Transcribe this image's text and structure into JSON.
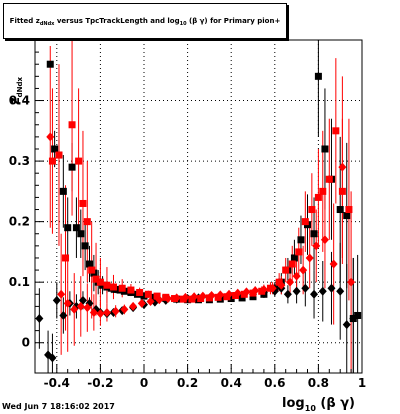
{
  "header": {
    "title_prefix": "Fitted  z",
    "title_sub": "dNdx",
    "title_mid": "  versus  TpcTrackLength and log",
    "title_sub2": "10",
    "title_suffix": " (β γ) for Primary pion+"
  },
  "footer": {
    "timestamp": "Wed Jun  7 18:16:02 2017"
  },
  "axes": {
    "xlabel_main": "log",
    "xlabel_sub": "10",
    "xlabel_tail": " (β γ)",
    "ylabel_main": "z",
    "ylabel_sub": "dNdx"
  },
  "chart_data": {
    "type": "scatter",
    "title": "Fitted z_dNdx versus TpcTrackLength and log10(βγ) for Primary pion+",
    "xlabel": "log10 (β γ)",
    "ylabel": "z_dNdx",
    "xlim": [
      -0.5,
      1.0
    ],
    "ylim": [
      -0.05,
      0.5
    ],
    "x_ticks": [
      -0.4,
      -0.2,
      0,
      0.2,
      0.4,
      0.6,
      0.8,
      1
    ],
    "x_tick_labels": [
      "-0.4",
      "-0.2",
      "0",
      "0.2",
      "0.4",
      "0.6",
      "0.8",
      "1"
    ],
    "y_ticks": [
      0,
      0.1,
      0.2,
      0.3,
      0.4
    ],
    "y_tick_labels": [
      "0",
      "0.1",
      "0.2",
      "0.3",
      "0.4"
    ],
    "grid": true,
    "series": [
      {
        "color": "#000000",
        "marker": "square",
        "points": [
          [
            -0.43,
            0.46,
            0.0
          ],
          [
            -0.41,
            0.32,
            0.03
          ],
          [
            -0.39,
            0.31,
            0.05
          ],
          [
            -0.37,
            0.25,
            0.06
          ],
          [
            -0.35,
            0.19,
            0.05
          ],
          [
            -0.33,
            0.29,
            0.04
          ],
          [
            -0.31,
            0.19,
            0.05
          ],
          [
            -0.29,
            0.18,
            0.04
          ],
          [
            -0.27,
            0.16,
            0.04
          ],
          [
            -0.25,
            0.13,
            0.03
          ],
          [
            -0.23,
            0.115,
            0.03
          ],
          [
            -0.21,
            0.1,
            0.02
          ],
          [
            -0.19,
            0.095,
            0.015
          ],
          [
            -0.17,
            0.092,
            0.01
          ],
          [
            -0.15,
            0.09,
            0.008
          ],
          [
            -0.13,
            0.088,
            0.006
          ],
          [
            -0.11,
            0.087,
            0.005
          ],
          [
            -0.09,
            0.085,
            0.004
          ],
          [
            -0.06,
            0.083,
            0.004
          ],
          [
            -0.03,
            0.08,
            0.003
          ],
          [
            0.0,
            0.077,
            0.003
          ],
          [
            0.05,
            0.075,
            0.003
          ],
          [
            0.1,
            0.073,
            0.003
          ],
          [
            0.15,
            0.072,
            0.003
          ],
          [
            0.2,
            0.071,
            0.003
          ],
          [
            0.25,
            0.071,
            0.003
          ],
          [
            0.3,
            0.071,
            0.003
          ],
          [
            0.35,
            0.072,
            0.003
          ],
          [
            0.4,
            0.073,
            0.003
          ],
          [
            0.45,
            0.074,
            0.004
          ],
          [
            0.5,
            0.076,
            0.005
          ],
          [
            0.55,
            0.08,
            0.006
          ],
          [
            0.6,
            0.09,
            0.01
          ],
          [
            0.63,
            0.1,
            0.015
          ],
          [
            0.66,
            0.12,
            0.02
          ],
          [
            0.69,
            0.14,
            0.03
          ],
          [
            0.72,
            0.17,
            0.04
          ],
          [
            0.75,
            0.195,
            0.05
          ],
          [
            0.78,
            0.18,
            0.06
          ],
          [
            0.8,
            0.44,
            0.1
          ],
          [
            0.83,
            0.32,
            0.1
          ],
          [
            0.86,
            0.27,
            0.1
          ],
          [
            0.9,
            0.22,
            0.12
          ],
          [
            0.93,
            0.21,
            0.12
          ],
          [
            0.96,
            0.04,
            0.1
          ],
          [
            0.98,
            0.045,
            0.1
          ]
        ]
      },
      {
        "color": "#000000",
        "marker": "diamond",
        "points": [
          [
            -0.48,
            0.04,
            0.05
          ],
          [
            -0.44,
            -0.02,
            0.04
          ],
          [
            -0.42,
            -0.025,
            0.04
          ],
          [
            -0.4,
            0.07,
            0.03
          ],
          [
            -0.37,
            0.045,
            0.03
          ],
          [
            -0.34,
            0.065,
            0.02
          ],
          [
            -0.31,
            0.06,
            0.02
          ],
          [
            -0.28,
            0.07,
            0.015
          ],
          [
            -0.25,
            0.065,
            0.01
          ],
          [
            -0.22,
            0.055,
            0.008
          ],
          [
            -0.2,
            0.05,
            0.006
          ],
          [
            -0.17,
            0.048,
            0.005
          ],
          [
            -0.14,
            0.05,
            0.004
          ],
          [
            -0.1,
            0.053,
            0.004
          ],
          [
            -0.05,
            0.058,
            0.003
          ],
          [
            0.0,
            0.063,
            0.003
          ],
          [
            0.05,
            0.067,
            0.003
          ],
          [
            0.1,
            0.07,
            0.003
          ],
          [
            0.15,
            0.072,
            0.003
          ],
          [
            0.2,
            0.073,
            0.003
          ],
          [
            0.25,
            0.074,
            0.003
          ],
          [
            0.3,
            0.074,
            0.003
          ],
          [
            0.35,
            0.075,
            0.003
          ],
          [
            0.4,
            0.076,
            0.003
          ],
          [
            0.45,
            0.078,
            0.004
          ],
          [
            0.5,
            0.08,
            0.005
          ],
          [
            0.55,
            0.083,
            0.006
          ],
          [
            0.6,
            0.085,
            0.008
          ],
          [
            0.63,
            0.09,
            0.01
          ],
          [
            0.66,
            0.08,
            0.015
          ],
          [
            0.7,
            0.085,
            0.02
          ],
          [
            0.74,
            0.09,
            0.03
          ],
          [
            0.78,
            0.08,
            0.04
          ],
          [
            0.82,
            0.085,
            0.05
          ],
          [
            0.86,
            0.09,
            0.06
          ],
          [
            0.9,
            0.085,
            0.08
          ],
          [
            0.93,
            0.03,
            0.1
          ],
          [
            0.96,
            0.04,
            0.1
          ]
        ]
      },
      {
        "color": "#ff0000",
        "marker": "square",
        "points": [
          [
            -0.42,
            0.3,
            0.12
          ],
          [
            -0.39,
            0.31,
            0.15
          ],
          [
            -0.36,
            0.14,
            0.12
          ],
          [
            -0.33,
            0.36,
            0.15
          ],
          [
            -0.3,
            0.3,
            0.12
          ],
          [
            -0.28,
            0.23,
            0.12
          ],
          [
            -0.26,
            0.2,
            0.1
          ],
          [
            -0.24,
            0.12,
            0.08
          ],
          [
            -0.22,
            0.105,
            0.06
          ],
          [
            -0.2,
            0.1,
            0.04
          ],
          [
            -0.17,
            0.095,
            0.03
          ],
          [
            -0.14,
            0.092,
            0.02
          ],
          [
            -0.1,
            0.09,
            0.015
          ],
          [
            -0.06,
            0.087,
            0.01
          ],
          [
            -0.02,
            0.083,
            0.008
          ],
          [
            0.02,
            0.08,
            0.006
          ],
          [
            0.06,
            0.077,
            0.005
          ],
          [
            0.1,
            0.075,
            0.004
          ],
          [
            0.14,
            0.073,
            0.004
          ],
          [
            0.18,
            0.072,
            0.004
          ],
          [
            0.22,
            0.072,
            0.004
          ],
          [
            0.26,
            0.073,
            0.004
          ],
          [
            0.3,
            0.074,
            0.004
          ],
          [
            0.34,
            0.075,
            0.004
          ],
          [
            0.38,
            0.076,
            0.005
          ],
          [
            0.42,
            0.078,
            0.005
          ],
          [
            0.46,
            0.08,
            0.006
          ],
          [
            0.5,
            0.082,
            0.007
          ],
          [
            0.54,
            0.085,
            0.008
          ],
          [
            0.58,
            0.09,
            0.01
          ],
          [
            0.62,
            0.1,
            0.015
          ],
          [
            0.65,
            0.12,
            0.02
          ],
          [
            0.68,
            0.13,
            0.03
          ],
          [
            0.71,
            0.15,
            0.04
          ],
          [
            0.74,
            0.2,
            0.05
          ],
          [
            0.77,
            0.22,
            0.06
          ],
          [
            0.8,
            0.24,
            0.08
          ],
          [
            0.82,
            0.25,
            0.1
          ],
          [
            0.85,
            0.27,
            0.1
          ],
          [
            0.88,
            0.35,
            0.12
          ],
          [
            0.91,
            0.25,
            0.12
          ],
          [
            0.94,
            0.22,
            0.15
          ]
        ]
      },
      {
        "color": "#ff0000",
        "marker": "diamond",
        "points": [
          [
            -0.43,
            0.34,
            0.15
          ],
          [
            -0.38,
            0.08,
            0.1
          ],
          [
            -0.35,
            0.065,
            0.08
          ],
          [
            -0.32,
            0.055,
            0.06
          ],
          [
            -0.29,
            0.06,
            0.05
          ],
          [
            -0.26,
            0.058,
            0.04
          ],
          [
            -0.23,
            0.05,
            0.03
          ],
          [
            -0.2,
            0.048,
            0.02
          ],
          [
            -0.17,
            0.05,
            0.015
          ],
          [
            -0.13,
            0.052,
            0.01
          ],
          [
            -0.09,
            0.055,
            0.008
          ],
          [
            -0.05,
            0.06,
            0.006
          ],
          [
            -0.01,
            0.065,
            0.005
          ],
          [
            0.03,
            0.068,
            0.004
          ],
          [
            0.07,
            0.071,
            0.004
          ],
          [
            0.11,
            0.073,
            0.004
          ],
          [
            0.15,
            0.074,
            0.004
          ],
          [
            0.19,
            0.075,
            0.004
          ],
          [
            0.23,
            0.076,
            0.004
          ],
          [
            0.27,
            0.077,
            0.004
          ],
          [
            0.31,
            0.078,
            0.004
          ],
          [
            0.35,
            0.079,
            0.004
          ],
          [
            0.39,
            0.08,
            0.005
          ],
          [
            0.43,
            0.082,
            0.005
          ],
          [
            0.47,
            0.084,
            0.006
          ],
          [
            0.51,
            0.086,
            0.007
          ],
          [
            0.55,
            0.088,
            0.008
          ],
          [
            0.59,
            0.09,
            0.01
          ],
          [
            0.63,
            0.095,
            0.015
          ],
          [
            0.67,
            0.1,
            0.02
          ],
          [
            0.7,
            0.11,
            0.03
          ],
          [
            0.73,
            0.12,
            0.04
          ],
          [
            0.76,
            0.14,
            0.05
          ],
          [
            0.79,
            0.16,
            0.06
          ],
          [
            0.83,
            0.17,
            0.08
          ],
          [
            0.87,
            0.13,
            0.1
          ],
          [
            0.91,
            0.29,
            0.15
          ],
          [
            0.95,
            0.1,
            0.15
          ]
        ]
      }
    ]
  }
}
